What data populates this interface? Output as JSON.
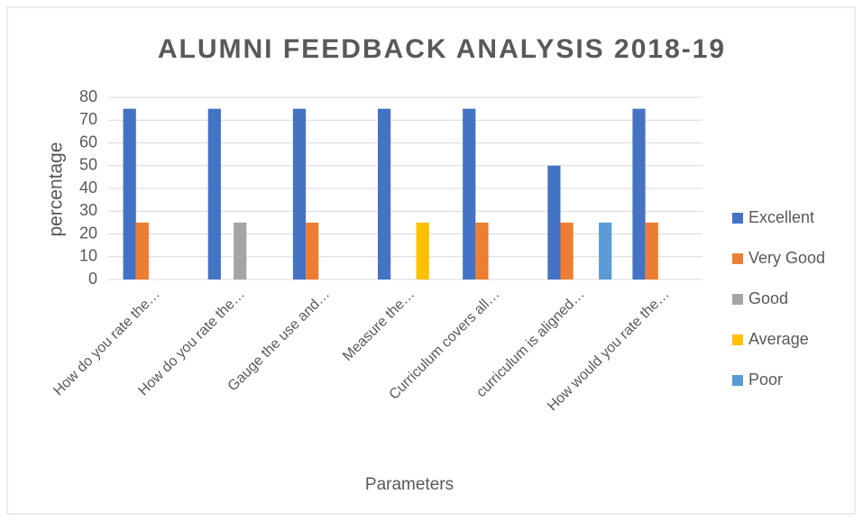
{
  "chart_data": {
    "type": "bar",
    "title": "ALUMNI FEEDBACK ANALYSIS 2018-19",
    "x_label": "Parameters",
    "y_label": "percentage",
    "categories": [
      "How do you rate the…",
      "How do you rate the…",
      "Gauge the use and…",
      "Measure the…",
      "Curriculum covers all…",
      "curriculum is aligned…",
      "How would you rate the…"
    ],
    "series": [
      {
        "name": "Excellent",
        "color": "#4472c4",
        "values": [
          75,
          75,
          75,
          75,
          75,
          50,
          75
        ]
      },
      {
        "name": "Very Good",
        "color": "#ed7d31",
        "values": [
          25,
          0,
          25,
          0,
          25,
          25,
          25
        ]
      },
      {
        "name": "Good",
        "color": "#a5a5a5",
        "values": [
          0,
          25,
          0,
          0,
          0,
          0,
          0
        ]
      },
      {
        "name": "Average",
        "color": "#ffc000",
        "values": [
          0,
          0,
          0,
          25,
          0,
          0,
          0
        ]
      },
      {
        "name": "Poor",
        "color": "#5b9bd5",
        "values": [
          0,
          0,
          0,
          0,
          0,
          25,
          0
        ]
      }
    ],
    "ylim": [
      0,
      80
    ],
    "yticks": [
      0,
      10,
      20,
      30,
      40,
      50,
      60,
      70,
      80
    ],
    "grid": true,
    "legend": "right"
  }
}
